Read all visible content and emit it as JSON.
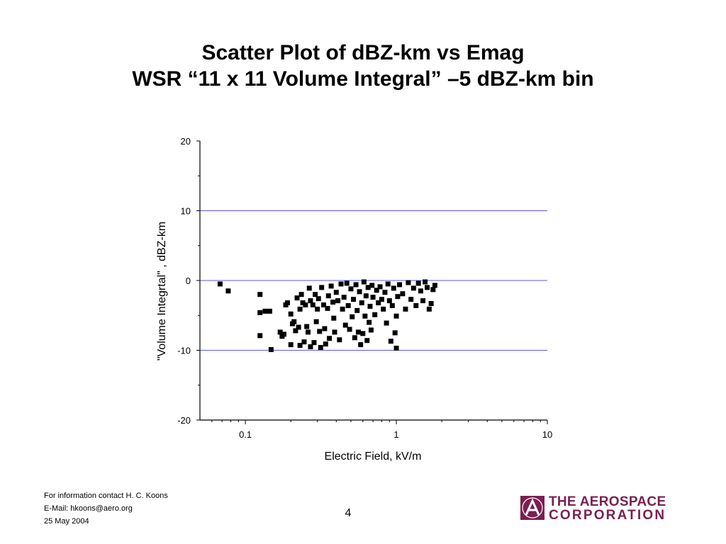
{
  "slide": {
    "title_line1": "Scatter Plot of dBZ-km vs Emag",
    "title_line2": "WSR “11 x 11 Volume Integral” –5 dBZ-km bin",
    "page_number": "4"
  },
  "footer": {
    "contact": "For information contact H. C. Koons",
    "email": "E-Mail: hkoons@aero.org",
    "date": "25 May 2004"
  },
  "logo": {
    "line1": "THE AEROSPACE",
    "line2": "CORPORATION",
    "color": "#7a1f52"
  },
  "chart_data": {
    "type": "scatter",
    "xlabel": "Electric Field, kV/m",
    "ylabel": "\"Volume Integrtal\" , dBZ-km",
    "x_scale": "log",
    "xlim": [
      0.05,
      10
    ],
    "ylim": [
      -20,
      20
    ],
    "x_ticks": [
      {
        "value": 0.1,
        "label": "0.1"
      },
      {
        "value": 1,
        "label": "1"
      },
      {
        "value": 10,
        "label": "10"
      }
    ],
    "y_ticks": [
      {
        "value": 20,
        "label": "20"
      },
      {
        "value": 10,
        "label": "10"
      },
      {
        "value": 0,
        "label": "0"
      },
      {
        "value": -10,
        "label": "-10"
      },
      {
        "value": -20,
        "label": "-20"
      }
    ],
    "reference_lines_y": [
      10,
      0,
      -10
    ],
    "reference_line_color": "#5a5ae6",
    "marker_color": "#000000",
    "grid": false,
    "points": [
      [
        0.068,
        -0.5
      ],
      [
        0.077,
        -1.5
      ],
      [
        0.125,
        -2.0
      ],
      [
        0.125,
        -4.6
      ],
      [
        0.125,
        -7.9
      ],
      [
        0.135,
        -4.4
      ],
      [
        0.145,
        -4.4
      ],
      [
        0.148,
        -9.9
      ],
      [
        0.17,
        -7.4
      ],
      [
        0.175,
        -8.0
      ],
      [
        0.18,
        -7.7
      ],
      [
        0.185,
        -3.5
      ],
      [
        0.19,
        -3.2
      ],
      [
        0.2,
        -4.8
      ],
      [
        0.2,
        -9.2
      ],
      [
        0.205,
        -6.2
      ],
      [
        0.21,
        -5.9
      ],
      [
        0.215,
        -7.2
      ],
      [
        0.22,
        -2.5
      ],
      [
        0.225,
        -6.7
      ],
      [
        0.23,
        -9.3
      ],
      [
        0.23,
        -4.1
      ],
      [
        0.235,
        -2.0
      ],
      [
        0.24,
        -3.2
      ],
      [
        0.245,
        -8.8
      ],
      [
        0.25,
        -3.5
      ],
      [
        0.255,
        -6.6
      ],
      [
        0.26,
        -7.4
      ],
      [
        0.265,
        -1.1
      ],
      [
        0.27,
        -2.9
      ],
      [
        0.27,
        -9.5
      ],
      [
        0.28,
        -3.5
      ],
      [
        0.285,
        -8.9
      ],
      [
        0.29,
        -2.0
      ],
      [
        0.295,
        -5.9
      ],
      [
        0.3,
        -4.1
      ],
      [
        0.305,
        -2.6
      ],
      [
        0.31,
        -7.3
      ],
      [
        0.315,
        -9.6
      ],
      [
        0.32,
        -1.0
      ],
      [
        0.33,
        -3.5
      ],
      [
        0.335,
        -6.9
      ],
      [
        0.34,
        -9.1
      ],
      [
        0.35,
        -4.0
      ],
      [
        0.355,
        -2.2
      ],
      [
        0.36,
        -8.3
      ],
      [
        0.37,
        -0.8
      ],
      [
        0.38,
        -3.1
      ],
      [
        0.385,
        -5.4
      ],
      [
        0.39,
        -7.4
      ],
      [
        0.4,
        -1.7
      ],
      [
        0.41,
        -2.9
      ],
      [
        0.42,
        -8.5
      ],
      [
        0.43,
        -0.5
      ],
      [
        0.44,
        -4.1
      ],
      [
        0.45,
        -2.4
      ],
      [
        0.46,
        -6.4
      ],
      [
        0.47,
        -0.4
      ],
      [
        0.48,
        -3.6
      ],
      [
        0.49,
        -7.0
      ],
      [
        0.5,
        -1.2
      ],
      [
        0.51,
        -5.2
      ],
      [
        0.52,
        -2.7
      ],
      [
        0.53,
        -8.2
      ],
      [
        0.54,
        -0.6
      ],
      [
        0.55,
        -4.3
      ],
      [
        0.56,
        -7.4
      ],
      [
        0.57,
        -1.6
      ],
      [
        0.58,
        -9.2
      ],
      [
        0.59,
        -3.2
      ],
      [
        0.6,
        -7.6
      ],
      [
        0.61,
        -0.2
      ],
      [
        0.62,
        -5.1
      ],
      [
        0.63,
        -2.2
      ],
      [
        0.64,
        -8.6
      ],
      [
        0.65,
        -1.0
      ],
      [
        0.66,
        -6.0
      ],
      [
        0.67,
        -3.7
      ],
      [
        0.68,
        -7.1
      ],
      [
        0.69,
        -0.7
      ],
      [
        0.7,
        -2.4
      ],
      [
        0.72,
        -4.9
      ],
      [
        0.74,
        -1.4
      ],
      [
        0.76,
        -3.2
      ],
      [
        0.78,
        -0.9
      ],
      [
        0.8,
        -2.7
      ],
      [
        0.82,
        -4.1
      ],
      [
        0.84,
        -1.7
      ],
      [
        0.86,
        -6.1
      ],
      [
        0.88,
        -0.5
      ],
      [
        0.9,
        -2.9
      ],
      [
        0.92,
        -8.7
      ],
      [
        0.94,
        -3.6
      ],
      [
        0.96,
        -1.1
      ],
      [
        0.98,
        -7.5
      ],
      [
        1.0,
        -9.7
      ],
      [
        1.0,
        -5.1
      ],
      [
        1.02,
        -2.3
      ],
      [
        1.05,
        -0.6
      ],
      [
        1.1,
        -1.9
      ],
      [
        1.15,
        -4.1
      ],
      [
        1.2,
        -0.3
      ],
      [
        1.25,
        -2.7
      ],
      [
        1.3,
        -1.1
      ],
      [
        1.35,
        -3.6
      ],
      [
        1.4,
        -0.4
      ],
      [
        1.45,
        -1.5
      ],
      [
        1.5,
        -2.9
      ],
      [
        1.55,
        -0.2
      ],
      [
        1.6,
        -1.0
      ],
      [
        1.65,
        -4.1
      ],
      [
        1.7,
        -3.3
      ],
      [
        1.75,
        -1.3
      ],
      [
        1.8,
        -0.7
      ]
    ]
  }
}
